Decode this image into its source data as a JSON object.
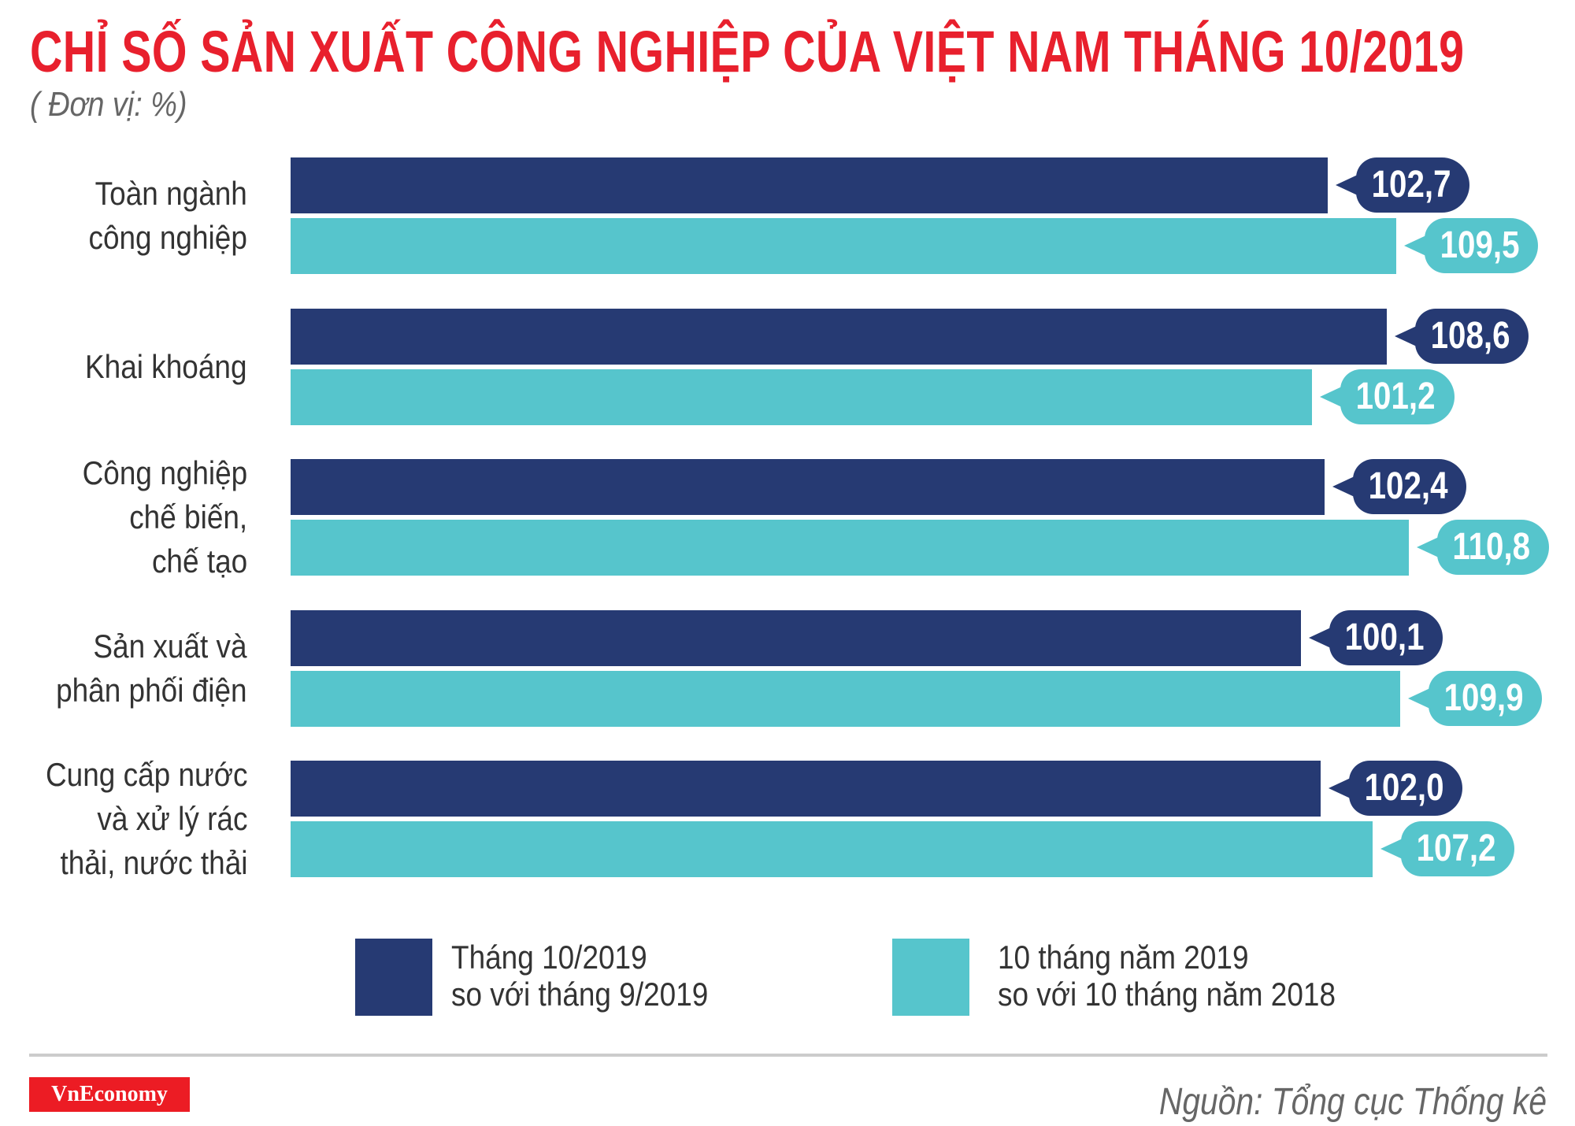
{
  "header": {
    "title": "CHỈ SỐ SẢN XUẤT CÔNG NGHIỆP CỦA VIỆT NAM THÁNG 10/2019",
    "subtitle": "( Đơn vị: %)"
  },
  "colors": {
    "title": "#e8202d",
    "series_1": "#263a73",
    "series_2": "#56c5cc",
    "label_text": "#333333",
    "logo_bg": "#ec1c24"
  },
  "chart_data": {
    "type": "bar",
    "orientation": "horizontal",
    "title": "CHỈ SỐ SẢN XUẤT CÔNG NGHIỆP CỦA VIỆT NAM THÁNG 10/2019",
    "subtitle": "( Đơn vị: %)",
    "xlabel": "",
    "ylabel": "",
    "unit": "%",
    "grid": false,
    "legend_position": "bottom",
    "categories": [
      "Toàn ngành công nghiệp",
      "Khai khoáng",
      "Công nghiệp chế biến, chế tạo",
      "Sản xuất và phân phối điện",
      "Cung cấp nước và xử lý rác thải, nước thải"
    ],
    "series": [
      {
        "name": "Tháng 10/2019 so với tháng 9/2019",
        "values": [
          102.7,
          108.6,
          102.4,
          100.1,
          102.0
        ],
        "labels": [
          "102,7",
          "108,6",
          "102,4",
          "100,1",
          "102,0"
        ]
      },
      {
        "name": "10 tháng năm 2019 so với 10 tháng năm 2018",
        "values": [
          109.5,
          101.2,
          110.8,
          109.9,
          107.2
        ],
        "labels": [
          "109,5",
          "101,2",
          "110,8",
          "109,9",
          "107,2"
        ]
      }
    ]
  },
  "groups": [
    {
      "label_lines": [
        "Toàn ngành",
        "công nghiệp"
      ]
    },
    {
      "label_lines": [
        "Khai khoáng"
      ]
    },
    {
      "label_lines": [
        "Công nghiệp",
        "chế biến,",
        "chế tạo"
      ]
    },
    {
      "label_lines": [
        "Sản xuất và",
        "phân phối điện"
      ]
    },
    {
      "label_lines": [
        "Cung cấp nước",
        "và xử lý rác",
        "thải, nước thải"
      ]
    }
  ],
  "legend": [
    {
      "line1": "Tháng 10/2019",
      "line2": "so với tháng 9/2019"
    },
    {
      "line1": "10 tháng năm 2019",
      "line2": "so với 10 tháng năm 2018"
    }
  ],
  "footer": {
    "logo": "VnEconomy",
    "source": "Nguồn: Tổng cục Thống kê"
  }
}
